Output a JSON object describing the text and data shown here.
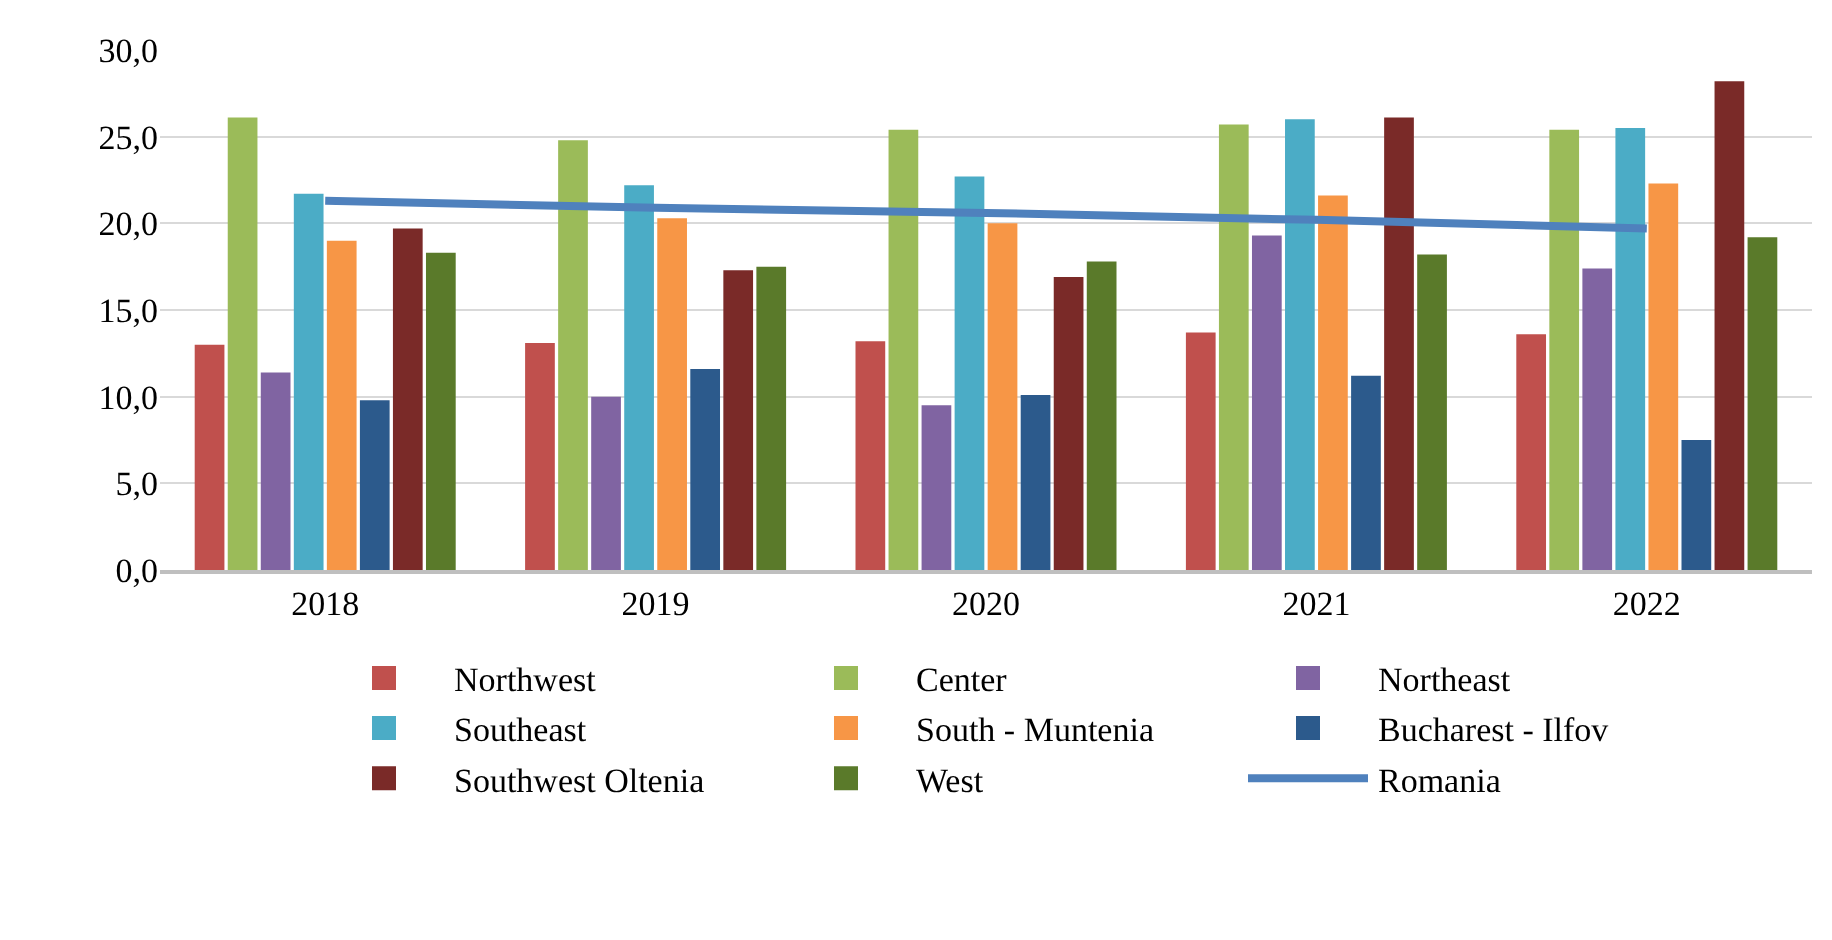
{
  "chart_data": {
    "type": "bar",
    "categories": [
      "2018",
      "2019",
      "2020",
      "2021",
      "2022"
    ],
    "series": [
      {
        "name": "Northwest",
        "color": "#c0504d",
        "values": [
          13.0,
          13.1,
          13.2,
          13.7,
          13.6
        ]
      },
      {
        "name": "Center",
        "color": "#9bbb59",
        "values": [
          26.1,
          24.8,
          25.4,
          25.7,
          25.4
        ]
      },
      {
        "name": "Northeast",
        "color": "#8064a2",
        "values": [
          11.4,
          10.0,
          9.5,
          19.3,
          17.4
        ]
      },
      {
        "name": "Southeast",
        "color": "#4bacc6",
        "values": [
          21.7,
          22.2,
          22.7,
          26.0,
          25.5
        ]
      },
      {
        "name": "South - Muntenia",
        "color": "#f79646",
        "values": [
          19.0,
          20.3,
          20.0,
          21.6,
          22.3
        ]
      },
      {
        "name": "Bucharest - Ilfov",
        "color": "#2c5a8c",
        "values": [
          9.8,
          11.6,
          10.1,
          11.2,
          7.5
        ]
      },
      {
        "name": "Southwest Oltenia",
        "color": "#7a2a28",
        "values": [
          19.7,
          17.3,
          16.9,
          26.1,
          28.2
        ]
      },
      {
        "name": "West",
        "color": "#5a7a2a",
        "values": [
          18.3,
          17.5,
          17.8,
          18.2,
          19.2
        ]
      },
      {
        "name": "Romania",
        "type": "line",
        "color": "#4f81bd",
        "values": [
          21.3,
          20.9,
          20.6,
          20.2,
          19.7
        ]
      }
    ],
    "ylim": [
      0,
      30
    ],
    "yticks": [
      {
        "value": 0,
        "label": "0,0"
      },
      {
        "value": 5,
        "label": "5,0"
      },
      {
        "value": 10,
        "label": "10,0"
      },
      {
        "value": 15,
        "label": "15,0"
      },
      {
        "value": 20,
        "label": "20,0"
      },
      {
        "value": 25,
        "label": "25,0"
      },
      {
        "value": 30,
        "label": "30,0"
      }
    ],
    "grid": "y",
    "legend": "bottom",
    "marker": "none",
    "line_style": "solid"
  }
}
